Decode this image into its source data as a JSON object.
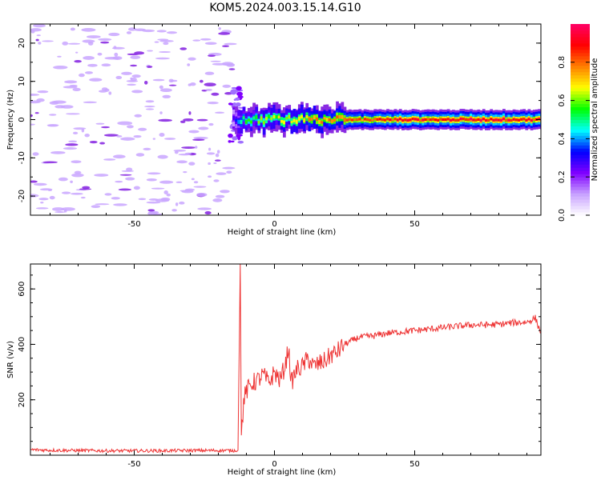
{
  "title": "KOM5.2024.003.15.14.G10",
  "chart_data": [
    {
      "type": "heatmap",
      "xlabel": "Height of straight line (km)",
      "ylabel": "Frequency (Hz)",
      "xlim": [
        -87,
        95
      ],
      "ylim": [
        -25,
        25
      ],
      "xticks": [
        -50,
        0,
        50
      ],
      "yticks": [
        -20,
        -10,
        0,
        10,
        20
      ],
      "grid": false,
      "colorbar": {
        "label": "Normalized spectral amplitude",
        "range": [
          0,
          1
        ],
        "ticks": [
          0.0,
          0.2,
          0.4,
          0.6,
          0.8
        ],
        "colormap": [
          "#ffffff",
          "#c8a2ff",
          "#8000ff",
          "#0000ff",
          "#00ffff",
          "#00ff00",
          "#ffff00",
          "#ff8000",
          "#ff0000",
          "#ff0066"
        ]
      },
      "ridge": [
        {
          "x": -15,
          "amplitude": 0.3
        },
        {
          "x": -12,
          "amplitude": 0.55
        },
        {
          "x": -5,
          "amplitude": 0.6
        },
        {
          "x": 0,
          "amplitude": 0.65
        },
        {
          "x": 10,
          "amplitude": 0.75
        },
        {
          "x": 20,
          "amplitude": 0.8
        },
        {
          "x": 40,
          "amplitude": 0.9
        },
        {
          "x": 60,
          "amplitude": 0.95
        },
        {
          "x": 80,
          "amplitude": 0.95
        },
        {
          "x": 95,
          "amplitude": 0.9
        }
      ],
      "noise_region_x": [
        -87,
        -15
      ]
    },
    {
      "type": "line",
      "xlabel": "Height of straight line (km)",
      "ylabel": "SNR (v/v)",
      "xlim": [
        -87,
        95
      ],
      "ylim": [
        0,
        690
      ],
      "xticks": [
        -50,
        0,
        50
      ],
      "yticks": [
        200,
        400,
        600
      ],
      "grid": false,
      "series": [
        {
          "color": "#ee3333",
          "x": [
            -87,
            -80,
            -70,
            -60,
            -50,
            -40,
            -30,
            -20,
            -15,
            -13,
            -12.2,
            -11.8,
            -11,
            -10,
            -8,
            -6,
            -4,
            -2,
            0,
            2,
            4,
            5,
            6,
            8,
            10,
            12,
            14,
            16,
            18,
            20,
            22,
            25,
            30,
            35,
            40,
            45,
            50,
            55,
            60,
            65,
            70,
            75,
            80,
            85,
            90,
            93,
            95
          ],
          "y": [
            20,
            18,
            17,
            16,
            16,
            16,
            17,
            17,
            17,
            18,
            690,
            60,
            200,
            230,
            260,
            270,
            290,
            260,
            300,
            270,
            330,
            390,
            260,
            310,
            320,
            350,
            320,
            330,
            340,
            360,
            370,
            400,
            425,
            430,
            440,
            445,
            450,
            455,
            460,
            465,
            470,
            470,
            472,
            478,
            480,
            495,
            440
          ]
        }
      ]
    }
  ]
}
